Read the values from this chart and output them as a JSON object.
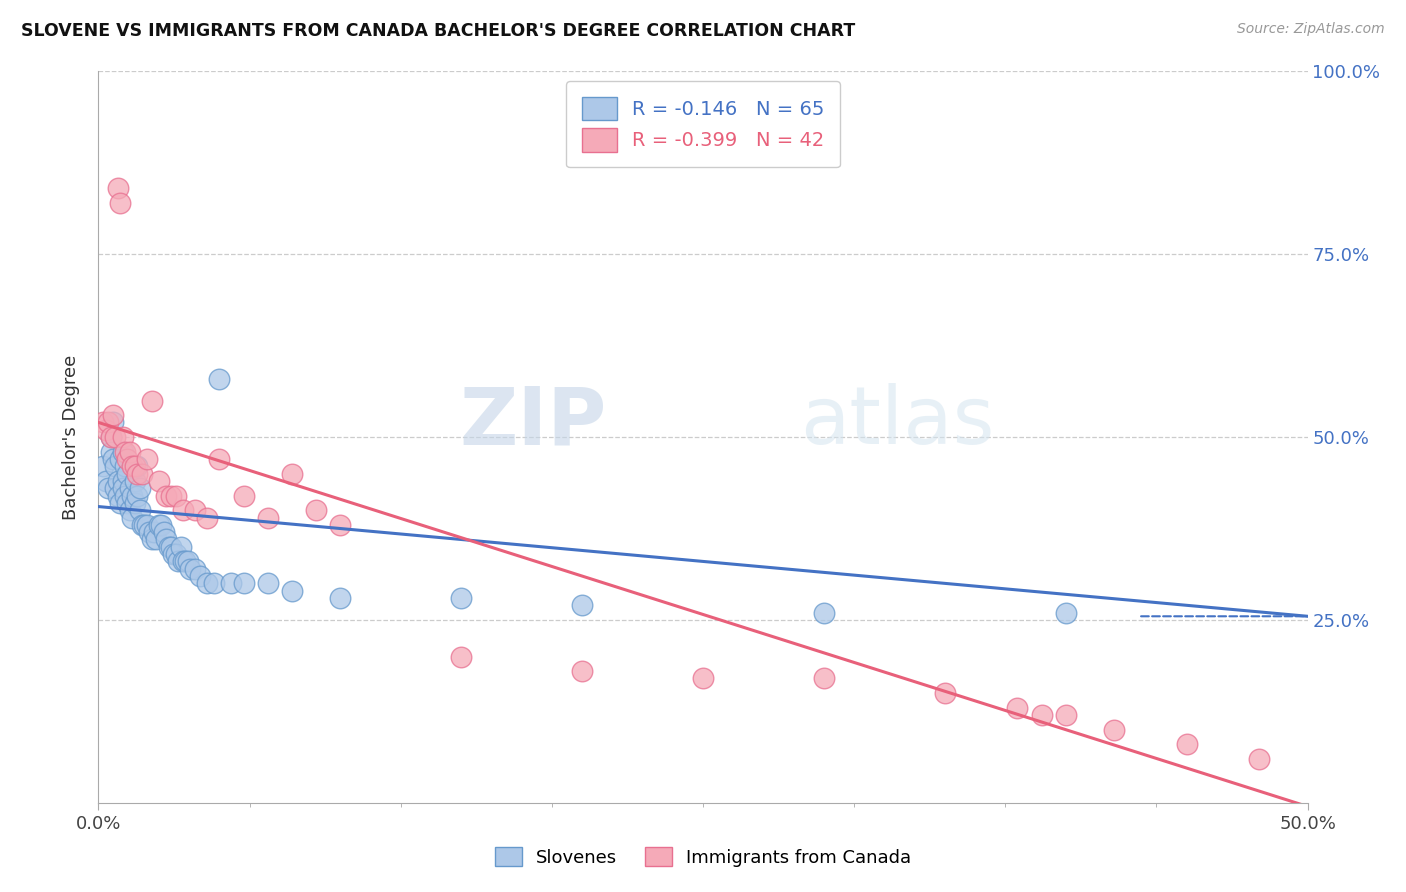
{
  "title": "SLOVENE VS IMMIGRANTS FROM CANADA BACHELOR'S DEGREE CORRELATION CHART",
  "source": "Source: ZipAtlas.com",
  "ylabel": "Bachelor's Degree",
  "xmin": 0.0,
  "xmax": 0.5,
  "ymin": 0.0,
  "ymax": 1.0,
  "blue_R": -0.146,
  "blue_N": 65,
  "pink_R": -0.399,
  "pink_N": 42,
  "blue_color": "#adc8e8",
  "pink_color": "#f5aab8",
  "blue_edge_color": "#6699cc",
  "pink_edge_color": "#e87090",
  "blue_line_color": "#4472c4",
  "pink_line_color": "#e8607a",
  "watermark_zip": "ZIP",
  "watermark_atlas": "atlas",
  "legend_label_blue": "Slovenes",
  "legend_label_pink": "Immigrants from Canada",
  "blue_scatter_x": [
    0.002,
    0.003,
    0.004,
    0.005,
    0.005,
    0.006,
    0.006,
    0.007,
    0.007,
    0.008,
    0.008,
    0.009,
    0.009,
    0.01,
    0.01,
    0.01,
    0.011,
    0.011,
    0.012,
    0.012,
    0.013,
    0.013,
    0.014,
    0.014,
    0.015,
    0.015,
    0.016,
    0.016,
    0.017,
    0.017,
    0.018,
    0.019,
    0.02,
    0.021,
    0.022,
    0.023,
    0.024,
    0.025,
    0.026,
    0.027,
    0.028,
    0.029,
    0.03,
    0.031,
    0.032,
    0.033,
    0.034,
    0.035,
    0.036,
    0.037,
    0.038,
    0.04,
    0.042,
    0.045,
    0.048,
    0.05,
    0.055,
    0.06,
    0.07,
    0.08,
    0.1,
    0.15,
    0.2,
    0.3,
    0.4
  ],
  "blue_scatter_y": [
    0.46,
    0.44,
    0.43,
    0.5,
    0.48,
    0.47,
    0.52,
    0.46,
    0.43,
    0.44,
    0.42,
    0.41,
    0.47,
    0.48,
    0.44,
    0.43,
    0.46,
    0.42,
    0.45,
    0.41,
    0.43,
    0.4,
    0.42,
    0.39,
    0.44,
    0.41,
    0.46,
    0.42,
    0.43,
    0.4,
    0.38,
    0.38,
    0.38,
    0.37,
    0.36,
    0.37,
    0.36,
    0.38,
    0.38,
    0.37,
    0.36,
    0.35,
    0.35,
    0.34,
    0.34,
    0.33,
    0.35,
    0.33,
    0.33,
    0.33,
    0.32,
    0.32,
    0.31,
    0.3,
    0.3,
    0.58,
    0.3,
    0.3,
    0.3,
    0.29,
    0.28,
    0.28,
    0.27,
    0.26,
    0.26
  ],
  "pink_scatter_x": [
    0.002,
    0.003,
    0.004,
    0.005,
    0.006,
    0.007,
    0.008,
    0.009,
    0.01,
    0.011,
    0.012,
    0.013,
    0.014,
    0.015,
    0.016,
    0.018,
    0.02,
    0.022,
    0.025,
    0.028,
    0.03,
    0.032,
    0.035,
    0.04,
    0.045,
    0.05,
    0.06,
    0.07,
    0.08,
    0.09,
    0.1,
    0.15,
    0.2,
    0.25,
    0.3,
    0.35,
    0.38,
    0.39,
    0.4,
    0.42,
    0.45,
    0.48
  ],
  "pink_scatter_y": [
    0.52,
    0.51,
    0.52,
    0.5,
    0.53,
    0.5,
    0.84,
    0.82,
    0.5,
    0.48,
    0.47,
    0.48,
    0.46,
    0.46,
    0.45,
    0.45,
    0.47,
    0.55,
    0.44,
    0.42,
    0.42,
    0.42,
    0.4,
    0.4,
    0.39,
    0.47,
    0.42,
    0.39,
    0.45,
    0.4,
    0.38,
    0.2,
    0.18,
    0.17,
    0.17,
    0.15,
    0.13,
    0.12,
    0.12,
    0.1,
    0.08,
    0.06
  ],
  "blue_line_intercept": 0.405,
  "blue_line_slope": -0.3,
  "pink_line_intercept": 0.52,
  "pink_line_slope": -1.05,
  "xtick_positions": [
    0.0,
    0.0625,
    0.125,
    0.1875,
    0.25,
    0.3125,
    0.375,
    0.4375,
    0.5
  ],
  "xtick_labels_show": {
    "0.0": "0.0%",
    "0.50": "50.0%"
  },
  "ytick_right_positions": [
    0.0,
    0.25,
    0.5,
    0.75,
    1.0
  ],
  "ytick_right_labels": [
    "",
    "25.0%",
    "50.0%",
    "75.0%",
    "100.0%"
  ],
  "grid_color": "#cccccc",
  "spine_color": "#aaaaaa"
}
